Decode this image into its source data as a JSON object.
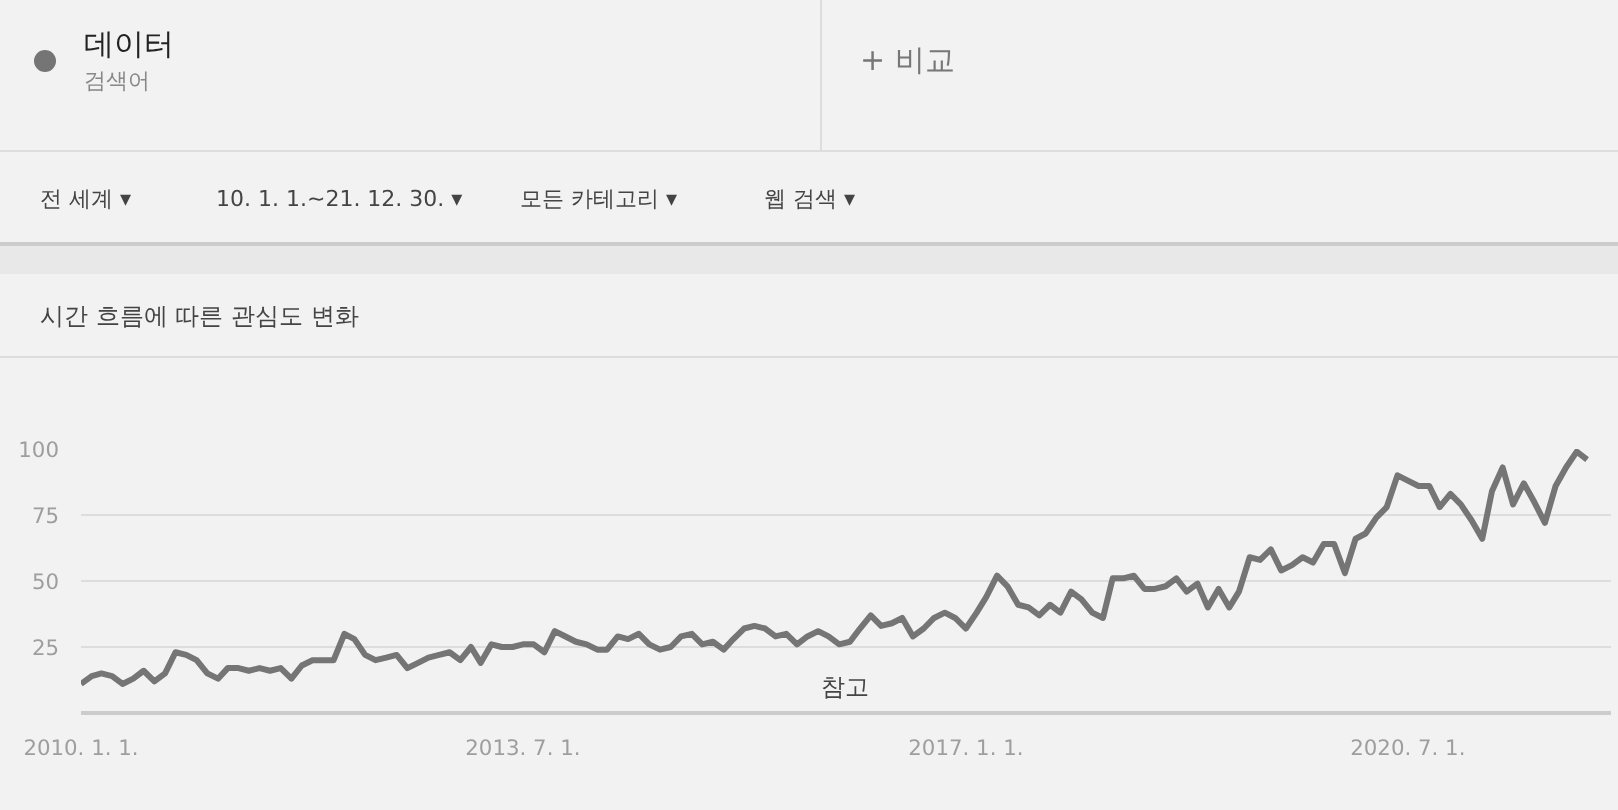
{
  "chart_data": {
    "type": "line",
    "title": "시간 흐름에 따른 관심도 변화",
    "x": [
      "2010-01",
      "2010-02",
      "2010-03",
      "2010-04",
      "2010-05",
      "2010-06",
      "2010-07",
      "2010-08",
      "2010-09",
      "2010-10",
      "2010-11",
      "2010-12",
      "2011-01",
      "2011-02",
      "2011-03",
      "2011-04",
      "2011-05",
      "2011-06",
      "2011-07",
      "2011-08",
      "2011-09",
      "2011-10",
      "2011-11",
      "2011-12",
      "2012-01",
      "2012-02",
      "2012-03",
      "2012-04",
      "2012-05",
      "2012-06",
      "2012-07",
      "2012-08",
      "2012-09",
      "2012-10",
      "2012-11",
      "2012-12",
      "2013-01",
      "2013-02",
      "2013-03",
      "2013-04",
      "2013-05",
      "2013-06",
      "2013-07",
      "2013-08",
      "2013-09",
      "2013-10",
      "2013-11",
      "2013-12",
      "2014-01",
      "2014-02",
      "2014-03",
      "2014-04",
      "2014-05",
      "2014-06",
      "2014-07",
      "2014-08",
      "2014-09",
      "2014-10",
      "2014-11",
      "2014-12",
      "2015-01",
      "2015-02",
      "2015-03",
      "2015-04",
      "2015-05",
      "2015-06",
      "2015-07",
      "2015-08",
      "2015-09",
      "2015-10",
      "2015-11",
      "2015-12",
      "2016-01",
      "2016-02",
      "2016-03",
      "2016-04",
      "2016-05",
      "2016-06",
      "2016-07",
      "2016-08",
      "2016-09",
      "2016-10",
      "2016-11",
      "2016-12",
      "2017-01",
      "2017-02",
      "2017-03",
      "2017-04",
      "2017-05",
      "2017-06",
      "2017-07",
      "2017-08",
      "2017-09",
      "2017-10",
      "2017-11",
      "2017-12",
      "2018-01",
      "2018-02",
      "2018-03",
      "2018-04",
      "2018-05",
      "2018-06",
      "2018-07",
      "2018-08",
      "2018-09",
      "2018-10",
      "2018-11",
      "2018-12",
      "2019-01",
      "2019-02",
      "2019-03",
      "2019-04",
      "2019-05",
      "2019-06",
      "2019-07",
      "2019-08",
      "2019-09",
      "2019-10",
      "2019-11",
      "2019-12",
      "2020-01",
      "2020-02",
      "2020-03",
      "2020-04",
      "2020-05",
      "2020-06",
      "2020-07",
      "2020-08",
      "2020-09",
      "2020-10",
      "2020-11",
      "2020-12",
      "2021-01",
      "2021-02",
      "2021-03",
      "2021-04",
      "2021-05",
      "2021-06",
      "2021-07",
      "2021-08",
      "2021-09",
      "2021-10",
      "2021-11",
      "2021-12"
    ],
    "series": [
      {
        "name": "데이터",
        "color": "#757575",
        "values": [
          11,
          14,
          15,
          14,
          11,
          13,
          16,
          12,
          15,
          23,
          22,
          20,
          15,
          13,
          17,
          17,
          16,
          17,
          16,
          17,
          13,
          18,
          20,
          20,
          20,
          30,
          28,
          22,
          20,
          21,
          22,
          17,
          19,
          21,
          22,
          23,
          20,
          25,
          19,
          26,
          25,
          25,
          26,
          26,
          23,
          31,
          29,
          27,
          26,
          24,
          24,
          29,
          28,
          30,
          26,
          24,
          25,
          29,
          30,
          26,
          27,
          24,
          28,
          32,
          33,
          32,
          29,
          30,
          26,
          29,
          31,
          29,
          26,
          27,
          32,
          37,
          33,
          34,
          36,
          29,
          32,
          36,
          38,
          36,
          32,
          38,
          44,
          52,
          48,
          41,
          40,
          37,
          41,
          38,
          46,
          43,
          38,
          36,
          51,
          51,
          52,
          47,
          47,
          48,
          51,
          46,
          49,
          40,
          47,
          40,
          46,
          59,
          58,
          62,
          54,
          56,
          59,
          57,
          64,
          64,
          53,
          66,
          68,
          74,
          78,
          90,
          88,
          86,
          86,
          78,
          83,
          79,
          73,
          66,
          84,
          93,
          79,
          87,
          80,
          72,
          86,
          93,
          99,
          96
        ]
      }
    ],
    "xlim": [
      "2010-01-01",
      "2022-02-08"
    ],
    "xticks": [
      {
        "value": "2010-01-01",
        "label": "2010. 1. 1."
      },
      {
        "value": "2013-07-01",
        "label": "2013. 7. 1."
      },
      {
        "value": "2017-01-01",
        "label": "2017. 1. 1."
      },
      {
        "value": "2020-07-01",
        "label": "2020. 7. 1."
      }
    ],
    "ylim": [
      0,
      100
    ],
    "yticks": [
      25,
      50,
      75,
      100
    ],
    "grid": "y",
    "legend": "top left",
    "annotations": [
      "검색어",
      "+  비교",
      "전 세계 ▾",
      "10. 1. 1.~21. 12. 30. ▾",
      "모든 카테고리 ▾",
      "웹 검색 ▾",
      "참고"
    ]
  }
}
